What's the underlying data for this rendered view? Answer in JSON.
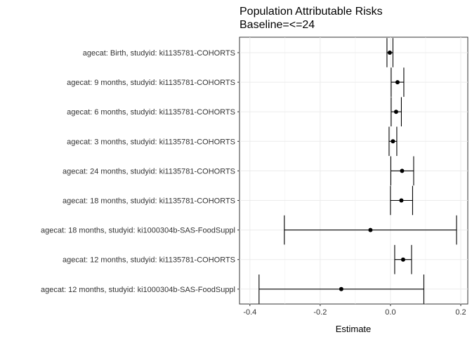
{
  "chart_data": {
    "type": "forest",
    "title": "Population Attributable Risks",
    "subtitle": "Baseline=<=24",
    "xlabel": "Estimate",
    "ylabel": "",
    "xlim": [
      -0.4,
      0.2
    ],
    "xticks": [
      -0.4,
      -0.2,
      0.0,
      0.2
    ],
    "xtick_labels": [
      "-0.4",
      "-0.2",
      "0.0",
      "0.2"
    ],
    "grid": true,
    "rows": [
      {
        "label": "agecat: Birth, studyid: ki1135781-COHORTS",
        "estimate": -0.002,
        "lower": -0.01,
        "upper": 0.007
      },
      {
        "label": "agecat: 9 months, studyid: ki1135781-COHORTS",
        "estimate": 0.02,
        "lower": 0.002,
        "upper": 0.038
      },
      {
        "label": "agecat: 6 months, studyid: ki1135781-COHORTS",
        "estimate": 0.016,
        "lower": 0.002,
        "upper": 0.031
      },
      {
        "label": "agecat: 3 months, studyid: ki1135781-COHORTS",
        "estimate": 0.007,
        "lower": -0.004,
        "upper": 0.018
      },
      {
        "label": "agecat: 24 months, studyid: ki1135781-COHORTS",
        "estimate": 0.033,
        "lower": 0.001,
        "upper": 0.066
      },
      {
        "label": "agecat: 18 months, studyid: ki1135781-COHORTS",
        "estimate": 0.031,
        "lower": 0.0,
        "upper": 0.063
      },
      {
        "label": "agecat: 18 months, studyid: ki1000304b-SAS-FoodSuppl",
        "estimate": -0.057,
        "lower": -0.302,
        "upper": 0.188
      },
      {
        "label": "agecat: 12 months, studyid: ki1135781-COHORTS",
        "estimate": 0.036,
        "lower": 0.012,
        "upper": 0.06
      },
      {
        "label": "agecat: 12 months, studyid: ki1000304b-SAS-FoodSuppl",
        "estimate": -0.14,
        "lower": -0.374,
        "upper": 0.095
      }
    ]
  }
}
